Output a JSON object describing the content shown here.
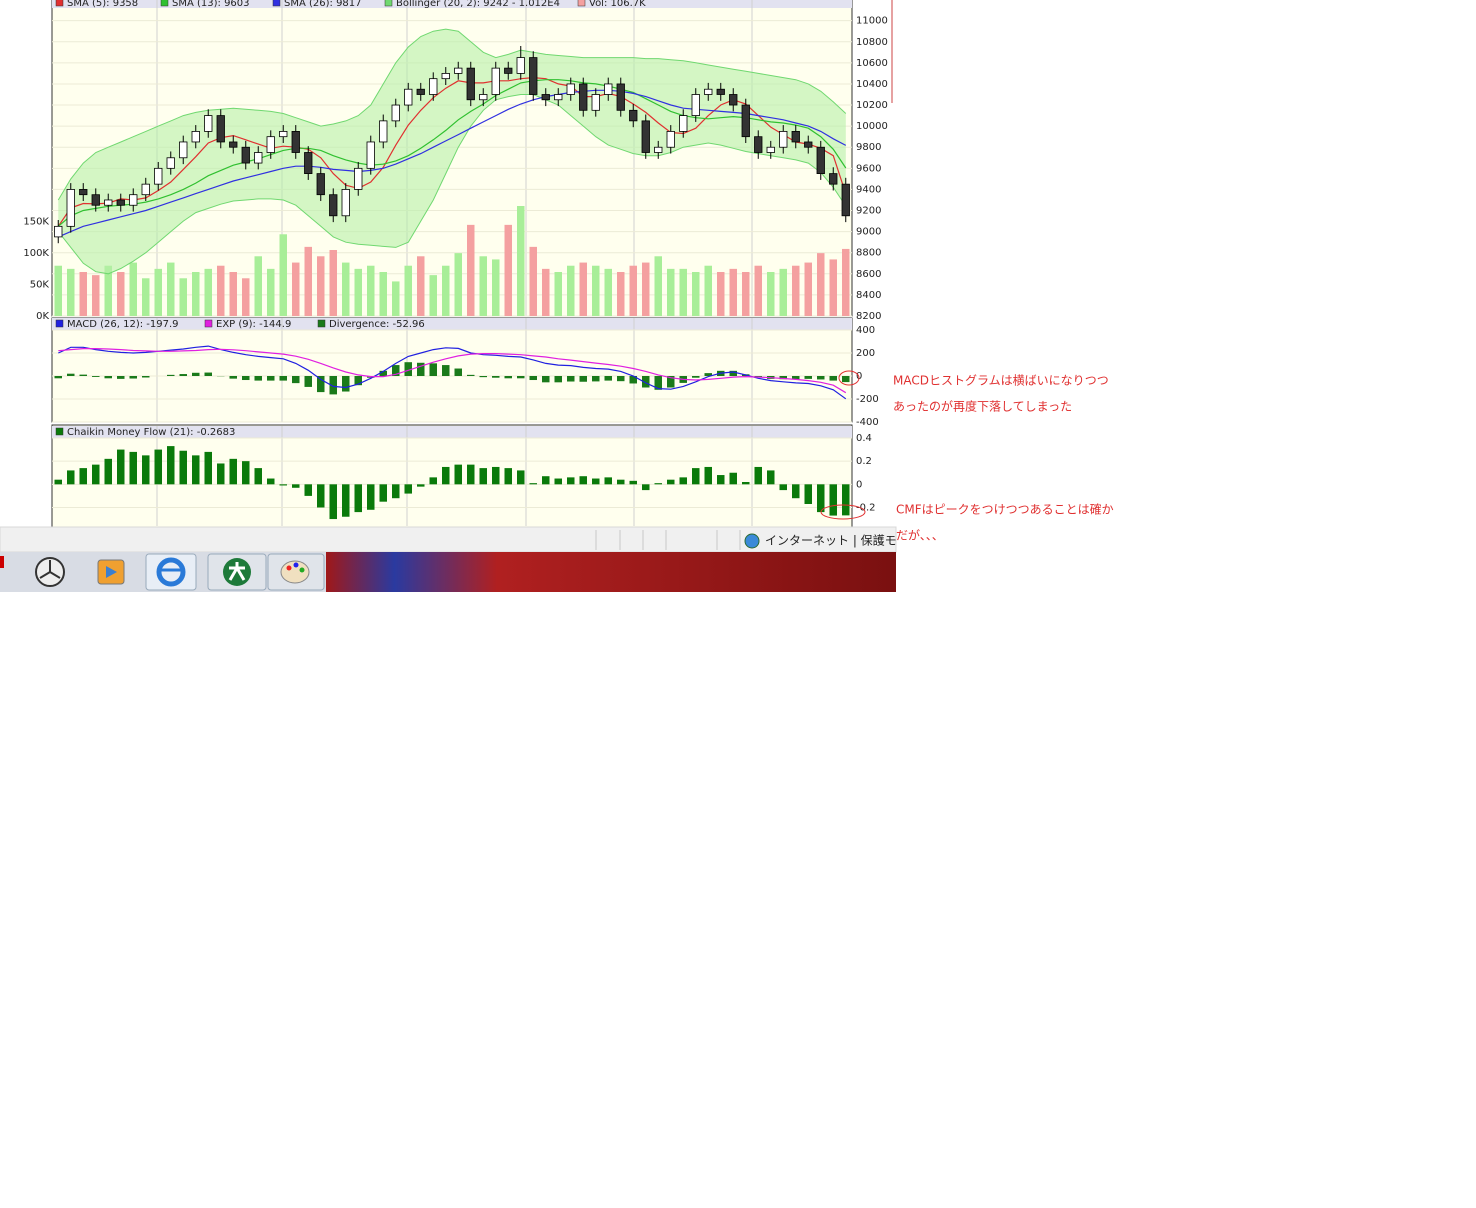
{
  "chart_data": [
    {
      "type": "candlestick",
      "up_color": "#ffffff",
      "down_color": "#333333",
      "grid": true,
      "open": [
        8950,
        9050,
        9400,
        9350,
        9250,
        9300,
        9250,
        9350,
        9450,
        9600,
        9700,
        9850,
        9950,
        10100,
        9850,
        9800,
        9650,
        9750,
        9900,
        9950,
        9750,
        9550,
        9350,
        9150,
        9400,
        9600,
        9850,
        10050,
        10200,
        10350,
        10300,
        10450,
        10500,
        10550,
        10250,
        10300,
        10550,
        10500,
        10650,
        10300,
        10250,
        10300,
        10400,
        10150,
        10300,
        10400,
        10150,
        10050,
        9750,
        9800,
        9950,
        10100,
        10300,
        10350,
        10300,
        10200,
        9900,
        9750,
        9800,
        9950,
        9850,
        9800,
        9550,
        9450
      ],
      "high": [
        9110,
        9460,
        9460,
        9410,
        9360,
        9360,
        9410,
        9510,
        9660,
        9760,
        9910,
        10010,
        10160,
        10160,
        9910,
        9860,
        9810,
        9960,
        10010,
        10010,
        9810,
        9610,
        9410,
        9460,
        9660,
        9910,
        10110,
        10260,
        10410,
        10410,
        10510,
        10560,
        10610,
        10610,
        10360,
        10610,
        10610,
        10760,
        10710,
        10360,
        10360,
        10460,
        10460,
        10360,
        10460,
        10460,
        10210,
        10110,
        9860,
        10010,
        10160,
        10360,
        10410,
        10410,
        10360,
        10260,
        9960,
        9860,
        10010,
        10010,
        9910,
        9860,
        9610,
        9510
      ],
      "low": [
        8890,
        8990,
        9290,
        9190,
        9190,
        9190,
        9190,
        9290,
        9390,
        9540,
        9640,
        9790,
        9890,
        9790,
        9740,
        9590,
        9590,
        9690,
        9840,
        9690,
        9490,
        9290,
        9090,
        9090,
        9340,
        9540,
        9790,
        9990,
        10140,
        10240,
        10240,
        10390,
        10440,
        10190,
        10190,
        10240,
        10440,
        10440,
        10240,
        10190,
        10190,
        10240,
        10090,
        10090,
        10240,
        10090,
        9990,
        9690,
        9690,
        9740,
        9890,
        10040,
        10240,
        10240,
        10140,
        9840,
        9690,
        9690,
        9740,
        9790,
        9740,
        9490,
        9390,
        9090
      ],
      "close": [
        9050,
        9400,
        9350,
        9250,
        9300,
        9250,
        9350,
        9450,
        9600,
        9700,
        9850,
        9950,
        10100,
        9850,
        9800,
        9650,
        9750,
        9900,
        9950,
        9750,
        9550,
        9350,
        9150,
        9400,
        9600,
        9850,
        10050,
        10200,
        10350,
        10300,
        10450,
        10500,
        10550,
        10250,
        10300,
        10550,
        10500,
        10650,
        10300,
        10250,
        10300,
        10400,
        10150,
        10300,
        10400,
        10150,
        10050,
        9750,
        9800,
        9950,
        10100,
        10300,
        10350,
        10300,
        10200,
        9900,
        9750,
        9800,
        9950,
        9850,
        9800,
        9550,
        9450,
        9150
      ],
      "ylim": [
        8200,
        11120
      ],
      "yticks": [
        8200,
        8400,
        8600,
        8800,
        9000,
        9200,
        9400,
        9600,
        9800,
        10000,
        10200,
        10400,
        10600,
        10800,
        11000
      ],
      "y2lim": [
        0,
        490000
      ],
      "y2ticks": [
        {
          "value": 0,
          "label": "0K"
        },
        {
          "value": 50000,
          "label": "50K"
        },
        {
          "value": 100000,
          "label": "100K"
        },
        {
          "value": 150000,
          "label": "150K"
        }
      ],
      "series": [
        {
          "name": "SMA (5): 9358",
          "color": "#e03030",
          "type": "line",
          "values": [
            9050,
            9225,
            9267,
            9263,
            9270,
            9310,
            9300,
            9320,
            9390,
            9470,
            9590,
            9710,
            9840,
            9890,
            9910,
            9870,
            9830,
            9790,
            9810,
            9800,
            9780,
            9700,
            9550,
            9440,
            9410,
            9470,
            9610,
            9820,
            10010,
            10150,
            10270,
            10360,
            10430,
            10410,
            10410,
            10430,
            10430,
            10450,
            10460,
            10450,
            10400,
            10380,
            10280,
            10280,
            10310,
            10280,
            10210,
            10130,
            10030,
            9940,
            9930,
            9980,
            10100,
            10200,
            10250,
            10210,
            10100,
            9990,
            9920,
            9850,
            9830,
            9790,
            9720,
            9358
          ]
        },
        {
          "name": "SMA (13): 9603",
          "color": "#30c030",
          "type": "line",
          "values": [
            9050,
            9150,
            9200,
            9220,
            9240,
            9250,
            9260,
            9280,
            9310,
            9350,
            9400,
            9460,
            9530,
            9580,
            9630,
            9660,
            9690,
            9730,
            9770,
            9790,
            9790,
            9770,
            9720,
            9680,
            9650,
            9630,
            9640,
            9670,
            9720,
            9790,
            9870,
            9960,
            10060,
            10140,
            10210,
            10290,
            10350,
            10410,
            10430,
            10440,
            10440,
            10430,
            10410,
            10400,
            10380,
            10350,
            10320,
            10260,
            10200,
            10140,
            10100,
            10080,
            10070,
            10080,
            10090,
            10080,
            10060,
            10040,
            10030,
            10010,
            9980,
            9900,
            9780,
            9603
          ]
        },
        {
          "name": "SMA (26): 9817",
          "color": "#3030e0",
          "type": "line",
          "values": [
            8950,
            9000,
            9050,
            9080,
            9110,
            9140,
            9170,
            9200,
            9240,
            9280,
            9320,
            9360,
            9400,
            9440,
            9480,
            9510,
            9540,
            9570,
            9600,
            9620,
            9620,
            9610,
            9590,
            9580,
            9570,
            9580,
            9600,
            9640,
            9690,
            9740,
            9800,
            9860,
            9920,
            9980,
            10040,
            10100,
            10160,
            10210,
            10250,
            10280,
            10300,
            10320,
            10330,
            10340,
            10340,
            10330,
            10310,
            10280,
            10240,
            10200,
            10170,
            10160,
            10150,
            10140,
            10130,
            10120,
            10100,
            10080,
            10060,
            10030,
            10000,
            9950,
            9880,
            9817
          ]
        },
        {
          "name": "Bollinger (20, 2): 9242 - 1.012E4",
          "color": "#70d870",
          "type": "band",
          "upper": [
            9300,
            9500,
            9650,
            9750,
            9800,
            9850,
            9900,
            9950,
            10000,
            10050,
            10100,
            10130,
            10150,
            10160,
            10170,
            10160,
            10150,
            10140,
            10120,
            10080,
            10040,
            10000,
            10020,
            10050,
            10100,
            10200,
            10400,
            10600,
            10750,
            10850,
            10900,
            10920,
            10900,
            10800,
            10700,
            10650,
            10680,
            10720,
            10700,
            10680,
            10670,
            10660,
            10650,
            10650,
            10650,
            10650,
            10650,
            10640,
            10640,
            10630,
            10620,
            10600,
            10580,
            10560,
            10540,
            10520,
            10500,
            10480,
            10460,
            10440,
            10400,
            10330,
            10230,
            10120
          ],
          "lower": [
            9000,
            8850,
            8700,
            8620,
            8600,
            8650,
            8720,
            8800,
            8900,
            9000,
            9100,
            9180,
            9220,
            9260,
            9290,
            9300,
            9310,
            9310,
            9300,
            9250,
            9150,
            9050,
            8950,
            8900,
            8880,
            8870,
            8860,
            8850,
            8900,
            9100,
            9300,
            9550,
            9800,
            10000,
            10150,
            10250,
            10280,
            10300,
            10300,
            10250,
            10200,
            10100,
            10000,
            9900,
            9820,
            9780,
            9740,
            9720,
            9720,
            9750,
            9800,
            9820,
            9840,
            9820,
            9790,
            9760,
            9740,
            9720,
            9700,
            9680,
            9650,
            9560,
            9420,
            9242
          ]
        },
        {
          "name": "Vol: 106.7K",
          "color": "#f4a0a0",
          "up_color": "#a8ee98",
          "type": "bar",
          "axis": "y2",
          "values": [
            80000,
            75000,
            70000,
            65000,
            80000,
            70000,
            85000,
            60000,
            75000,
            85000,
            60000,
            70000,
            75000,
            80000,
            70000,
            60000,
            95000,
            75000,
            130000,
            85000,
            110000,
            95000,
            105000,
            85000,
            75000,
            80000,
            70000,
            55000,
            80000,
            95000,
            65000,
            80000,
            100000,
            145000,
            95000,
            90000,
            145000,
            175000,
            110000,
            75000,
            70000,
            80000,
            85000,
            80000,
            75000,
            70000,
            80000,
            85000,
            95000,
            75000,
            75000,
            70000,
            80000,
            70000,
            75000,
            70000,
            80000,
            70000,
            75000,
            80000,
            85000,
            100000,
            90000,
            106700
          ]
        }
      ]
    },
    {
      "type": "line",
      "grid": true,
      "ylim": [
        -400,
        400
      ],
      "yticks": [
        400,
        200,
        0,
        -200,
        -400
      ],
      "series": [
        {
          "name": "MACD (26, 12): -197.9",
          "color": "#2020e0",
          "type": "line",
          "values": [
            200,
            250,
            250,
            230,
            215,
            205,
            200,
            205,
            215,
            225,
            235,
            250,
            260,
            230,
            205,
            185,
            170,
            160,
            150,
            110,
            50,
            -30,
            -90,
            -100,
            -70,
            -20,
            40,
            110,
            170,
            200,
            230,
            245,
            240,
            200,
            185,
            180,
            170,
            165,
            140,
            110,
            95,
            90,
            75,
            65,
            60,
            40,
            0,
            -60,
            -110,
            -115,
            -90,
            -50,
            -5,
            25,
            35,
            10,
            -20,
            -40,
            -50,
            -60,
            -65,
            -85,
            -120,
            -197.9
          ]
        },
        {
          "name": "EXP (9): -144.9",
          "color": "#e020e0",
          "type": "line",
          "values": [
            220,
            230,
            238,
            238,
            235,
            230,
            222,
            218,
            215,
            215,
            218,
            222,
            230,
            232,
            228,
            220,
            210,
            200,
            190,
            172,
            145,
            110,
            70,
            35,
            10,
            -5,
            -5,
            15,
            50,
            85,
            120,
            150,
            175,
            190,
            195,
            195,
            190,
            185,
            175,
            165,
            150,
            138,
            125,
            112,
            100,
            85,
            65,
            40,
            10,
            -15,
            -30,
            -35,
            -30,
            -20,
            -10,
            -5,
            -10,
            -15,
            -22,
            -30,
            -40,
            -55,
            -80,
            -144.9
          ]
        },
        {
          "name": "Divergence: -52.96",
          "color": "#1a7a1a",
          "type": "bar",
          "values": [
            -20,
            20,
            12,
            -8,
            -20,
            -25,
            -22,
            -13,
            0,
            10,
            17,
            28,
            30,
            -2,
            -23,
            -35,
            -40,
            -40,
            -40,
            -62,
            -95,
            -140,
            -160,
            -135,
            -80,
            -15,
            45,
            95,
            120,
            115,
            110,
            95,
            65,
            10,
            -10,
            -15,
            -20,
            -20,
            -35,
            -55,
            -55,
            -48,
            -50,
            -47,
            -40,
            -45,
            -65,
            -100,
            -120,
            -100,
            -60,
            -15,
            25,
            45,
            45,
            15,
            -10,
            -25,
            -28,
            -30,
            -25,
            -30,
            -40,
            -52.96
          ]
        }
      ]
    },
    {
      "type": "bar",
      "grid": true,
      "ylim": [
        -0.36,
        0.4
      ],
      "yticks": [
        0.4,
        0.2,
        0,
        -0.2
      ],
      "series": [
        {
          "name": "Chaikin Money Flow (21): -0.2683",
          "color": "#0a7a0a",
          "type": "bar",
          "values": [
            0.04,
            0.12,
            0.14,
            0.17,
            0.22,
            0.3,
            0.28,
            0.25,
            0.3,
            0.33,
            0.29,
            0.25,
            0.28,
            0.18,
            0.22,
            0.2,
            0.14,
            0.05,
            -0.01,
            -0.03,
            -0.1,
            -0.2,
            -0.3,
            -0.28,
            -0.24,
            -0.22,
            -0.15,
            -0.12,
            -0.08,
            -0.02,
            0.06,
            0.15,
            0.17,
            0.17,
            0.14,
            0.15,
            0.14,
            0.12,
            0.01,
            0.07,
            0.05,
            0.06,
            0.07,
            0.05,
            0.06,
            0.04,
            0.03,
            -0.05,
            0.01,
            0.04,
            0.06,
            0.14,
            0.15,
            0.08,
            0.1,
            0.02,
            0.15,
            0.12,
            -0.05,
            -0.12,
            -0.17,
            -0.24,
            -0.27,
            -0.2683
          ]
        }
      ]
    }
  ],
  "annotations": [
    "MACDヒストグラムは横ばいになりつつ",
    "あったのが再度下落してしまった",
    "CMFはピークをつけつつあることは確か",
    "だが、、、"
  ],
  "status_bar": {
    "zone": "インターネット | 保護モ"
  }
}
